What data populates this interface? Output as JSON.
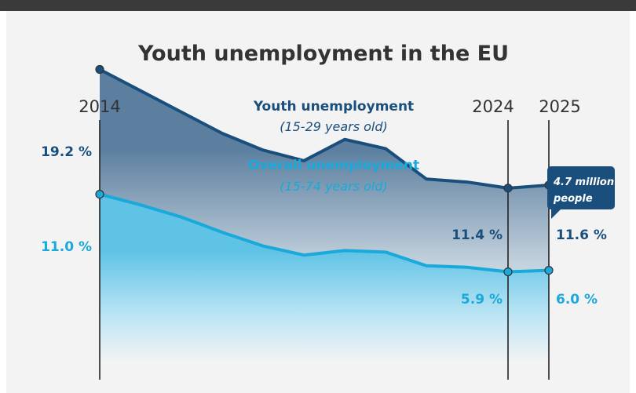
{
  "chart_data": {
    "type": "area",
    "title": "Youth unemployment in the EU",
    "x_min": 2014,
    "x_max": 2025,
    "y_min": 0,
    "y_max": 20,
    "series": [
      {
        "name": "Youth unemployment",
        "subtitle": "(15-29 years old)",
        "color": "#1a4f7d",
        "x": [
          2014,
          2015,
          2016,
          2017,
          2018,
          2019,
          2020,
          2021,
          2022,
          2023,
          2024,
          2025
        ],
        "values": [
          19.2,
          17.8,
          16.4,
          15.0,
          13.9,
          13.2,
          14.6,
          14.0,
          12.0,
          11.8,
          11.4,
          11.6
        ]
      },
      {
        "name": "Overall unemployment",
        "subtitle": "(15-74 years old)",
        "color": "#1aa9db",
        "x": [
          2014,
          2015,
          2016,
          2017,
          2018,
          2019,
          2020,
          2021,
          2022,
          2023,
          2024,
          2025
        ],
        "values": [
          11.0,
          10.3,
          9.5,
          8.5,
          7.6,
          7.0,
          7.3,
          7.2,
          6.3,
          6.2,
          5.9,
          6.0
        ]
      }
    ],
    "markers": [
      {
        "year": 2014,
        "label": "2014"
      },
      {
        "year": 2024,
        "label": "2024"
      },
      {
        "year": 2025,
        "label": "2025"
      }
    ],
    "value_labels": {
      "youth_2014": "19.2 %",
      "youth_2024": "11.4 %",
      "youth_2025": "11.6 %",
      "overall_2014": "11.0 %",
      "overall_2024": "5.9 %",
      "overall_2025": "6.0 %"
    },
    "callout": {
      "line1": "4.7 million",
      "line2": "people"
    },
    "colors": {
      "youth": "#1a4f7d",
      "overall": "#1aa9db",
      "callout_bg": "#1a4f7d"
    }
  }
}
